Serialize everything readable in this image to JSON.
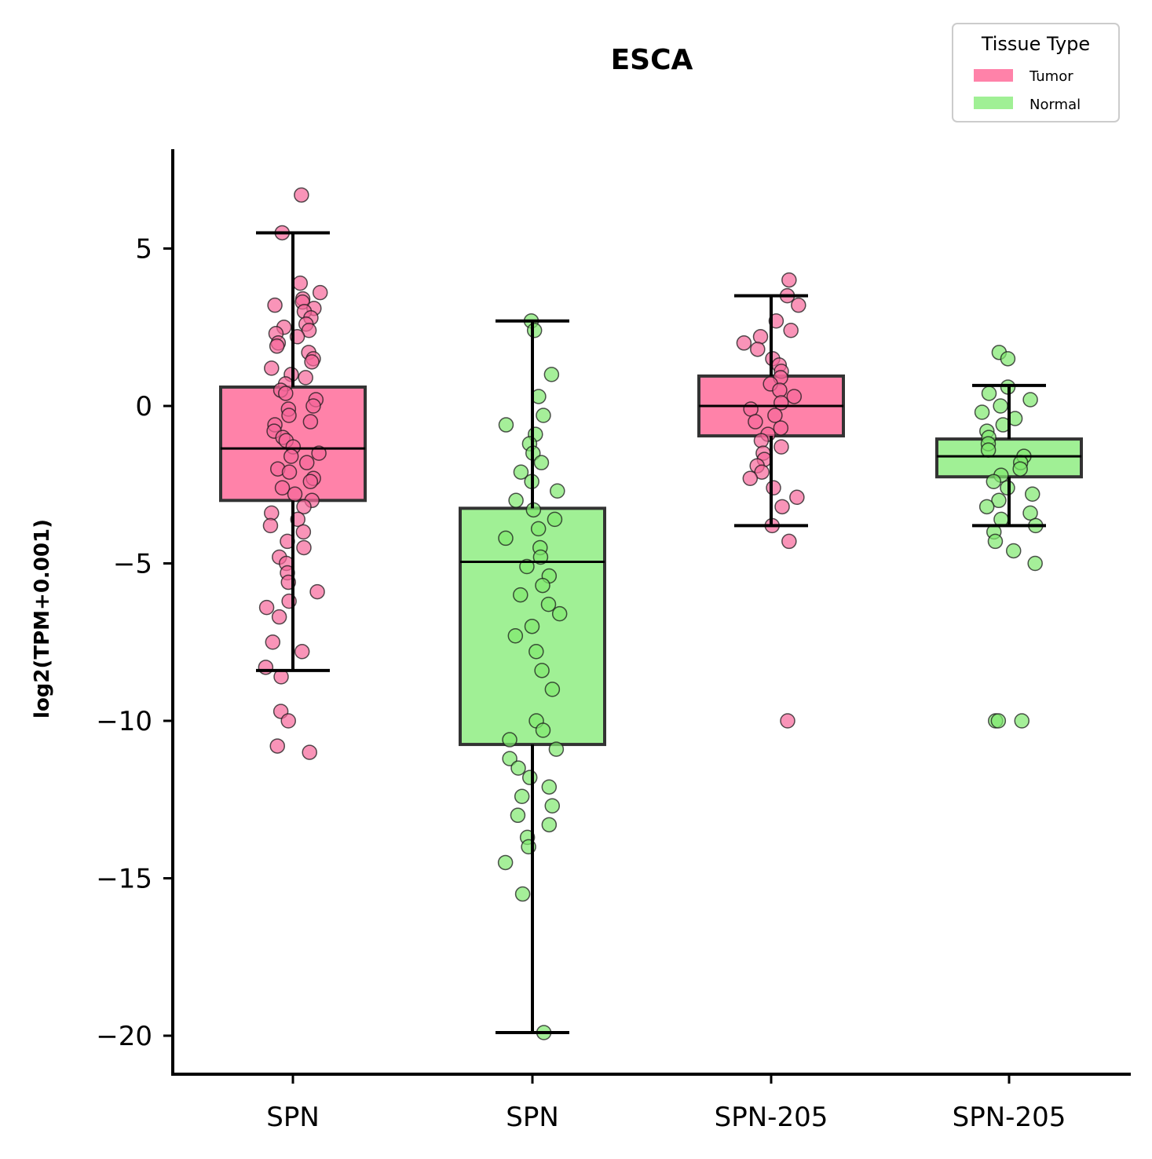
{
  "chart_data": {
    "type": "box",
    "title": "ESCA",
    "xlabel": "",
    "ylabel": "log2(TPM+0.001)",
    "ylim": [
      -21.3,
      8.1
    ],
    "yticks": [
      5,
      0,
      -5,
      -10,
      -15,
      -20
    ],
    "ytick_labels": [
      "5",
      "0",
      "−5",
      "−10",
      "−15",
      "−20"
    ],
    "categories": [
      "SPN",
      "SPN",
      "SPN-205",
      "SPN-205"
    ],
    "legend": {
      "title": "Tissue Type",
      "placement": "top-right",
      "entries": [
        {
          "label": "Tumor",
          "color": "#ff82a9"
        },
        {
          "label": "Normal",
          "color": "#a0f095"
        }
      ]
    },
    "colors": {
      "Tumor": "#ff82a9",
      "Normal": "#a0f095",
      "Tumor_point": "#f7679a",
      "Normal_point": "#7fe86e"
    },
    "boxes": [
      {
        "category": "SPN",
        "group": "Tumor",
        "whisker_low": -8.4,
        "q1": -3.0,
        "median": -1.35,
        "q3": 0.6,
        "whisker_high": 5.5
      },
      {
        "category": "SPN",
        "group": "Normal",
        "whisker_low": -19.9,
        "q1": -10.75,
        "median": -4.95,
        "q3": -3.25,
        "whisker_high": 2.7
      },
      {
        "category": "SPN-205",
        "group": "Tumor",
        "whisker_low": -3.8,
        "q1": -0.95,
        "median": 0.0,
        "q3": 0.95,
        "whisker_high": 3.5
      },
      {
        "category": "SPN-205",
        "group": "Normal",
        "whisker_low": -3.8,
        "q1": -2.25,
        "median": -1.6,
        "q3": -1.05,
        "whisker_high": 0.65
      }
    ],
    "points": [
      {
        "category": "SPN",
        "group": "Tumor",
        "values": [
          6.7,
          5.5,
          3.9,
          3.6,
          3.4,
          3.3,
          3.2,
          3.1,
          3.0,
          2.8,
          2.6,
          2.5,
          2.4,
          2.3,
          2.2,
          2.0,
          1.9,
          1.7,
          1.5,
          1.4,
          1.2,
          1.0,
          0.9,
          0.7,
          0.5,
          0.4,
          0.2,
          0.0,
          -0.1,
          -0.3,
          -0.5,
          -0.6,
          -0.8,
          -1.0,
          -1.1,
          -1.3,
          -1.5,
          -1.6,
          -1.8,
          -2.0,
          -2.1,
          -2.3,
          -2.4,
          -2.6,
          -2.8,
          -3.0,
          -3.2,
          -3.4,
          -3.6,
          -3.8,
          -4.0,
          -4.3,
          -4.5,
          -4.8,
          -5.0,
          -5.3,
          -5.6,
          -5.9,
          -6.2,
          -6.4,
          -6.7,
          -7.5,
          -7.8,
          -8.3,
          -8.6,
          -9.7,
          -10.0,
          -10.8,
          -11.0
        ]
      },
      {
        "category": "SPN",
        "group": "Normal",
        "values": [
          2.7,
          2.4,
          1.0,
          0.3,
          -0.3,
          -0.6,
          -0.9,
          -1.2,
          -1.5,
          -1.8,
          -2.1,
          -2.4,
          -2.7,
          -3.0,
          -3.3,
          -3.6,
          -3.9,
          -4.2,
          -4.5,
          -4.8,
          -5.1,
          -5.4,
          -5.7,
          -6.0,
          -6.3,
          -6.6,
          -7.0,
          -7.3,
          -7.8,
          -8.4,
          -9.0,
          -10.0,
          -10.3,
          -10.6,
          -10.9,
          -11.2,
          -11.5,
          -11.8,
          -12.1,
          -12.4,
          -12.7,
          -13.0,
          -13.3,
          -13.7,
          -14.0,
          -14.5,
          -15.5,
          -19.9
        ]
      },
      {
        "category": "SPN-205",
        "group": "Tumor",
        "values": [
          4.0,
          3.5,
          3.2,
          2.7,
          2.4,
          2.2,
          2.0,
          1.8,
          1.5,
          1.3,
          1.1,
          0.9,
          0.7,
          0.5,
          0.3,
          0.1,
          -0.1,
          -0.3,
          -0.5,
          -0.7,
          -0.9,
          -1.1,
          -1.3,
          -1.5,
          -1.7,
          -1.9,
          -2.1,
          -2.3,
          -2.6,
          -2.9,
          -3.2,
          -3.8,
          -4.3,
          -10.0
        ]
      },
      {
        "category": "SPN-205",
        "group": "Normal",
        "values": [
          1.7,
          1.5,
          0.6,
          0.4,
          0.2,
          0.0,
          -0.2,
          -0.4,
          -0.6,
          -0.8,
          -1.0,
          -1.2,
          -1.4,
          -1.6,
          -1.8,
          -2.0,
          -2.2,
          -2.4,
          -2.6,
          -2.8,
          -3.0,
          -3.2,
          -3.4,
          -3.6,
          -3.8,
          -4.0,
          -4.3,
          -4.6,
          -5.0,
          -10.0,
          -10.0,
          -10.0
        ]
      }
    ]
  }
}
